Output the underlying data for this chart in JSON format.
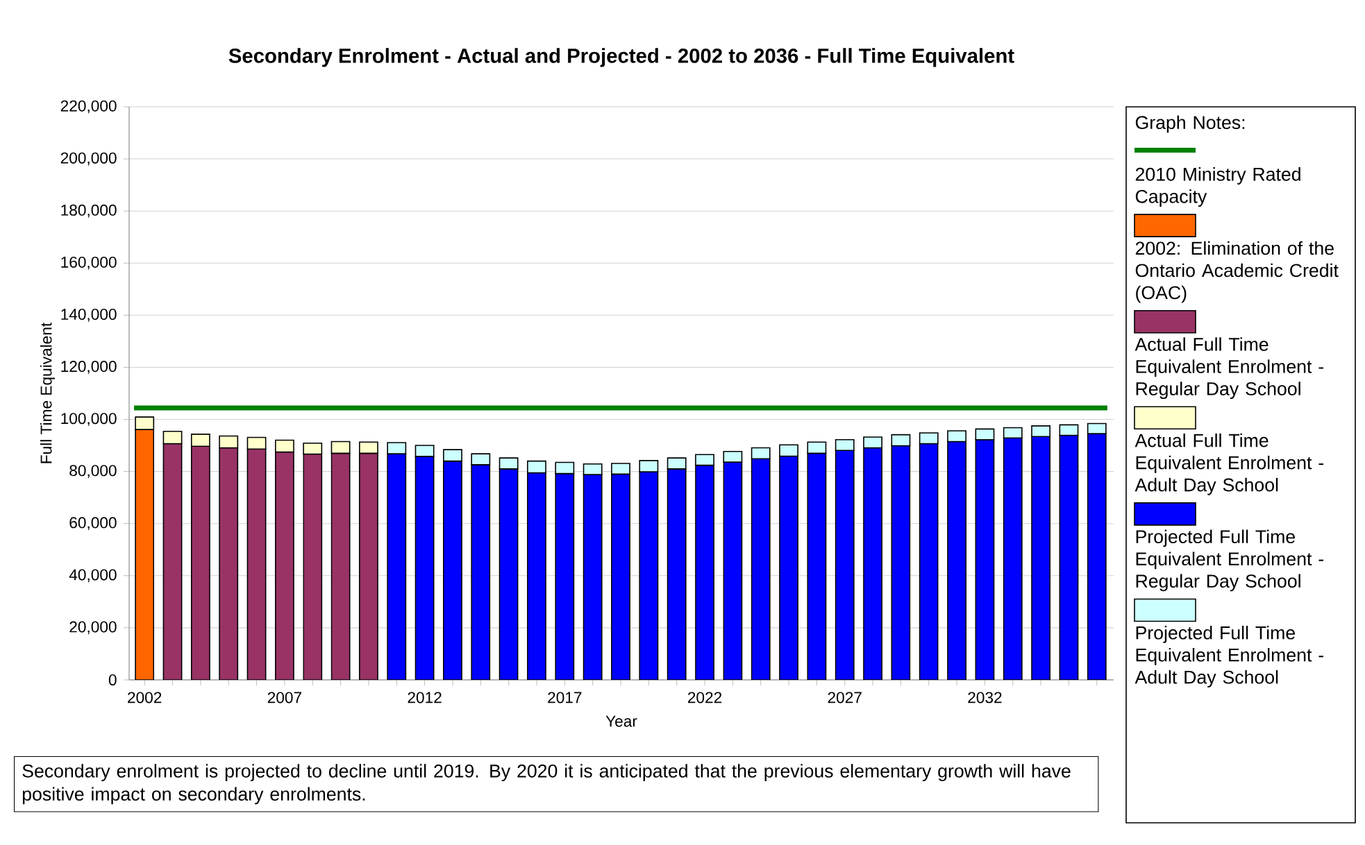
{
  "chart_data": {
    "type": "bar",
    "stacked": true,
    "title": "Secondary Enrolment - Actual and Projected - 2002 to 2036 - Full Time Equivalent",
    "xlabel": "Year",
    "ylabel": "Full Time Equivalent",
    "legend_title": "Graph Notes:",
    "legend": "right",
    "grid": "y",
    "categories": [
      "2002",
      null,
      null,
      null,
      null,
      "2007",
      null,
      null,
      null,
      null,
      "2012",
      null,
      null,
      null,
      null,
      "2017",
      null,
      null,
      null,
      null,
      "2022",
      null,
      null,
      null,
      null,
      "2027",
      null,
      null,
      null,
      null,
      "2032",
      null,
      null,
      null,
      null
    ],
    "ylim": [
      0,
      220000
    ],
    "yticks": [
      0,
      {
        "value": 20000,
        "label": "20,000"
      },
      {
        "value": 40000,
        "label": "40,000"
      },
      {
        "value": 60000,
        "label": "60,000"
      },
      {
        "value": 80000,
        "label": "80,000"
      },
      {
        "value": 100000,
        "label": "100,000"
      },
      {
        "value": 120000,
        "label": "120,000"
      },
      {
        "value": 140000,
        "label": "140,000"
      },
      {
        "value": 160000,
        "label": "160,000"
      },
      {
        "value": 180000,
        "label": "180,000"
      },
      {
        "value": 200000,
        "label": "200,000"
      },
      {
        "value": 220000,
        "label": "220,000"
      }
    ],
    "series": [
      {
        "name": "2002:  Elimination of the Ontario Academic Credit (OAC)",
        "color": "#ff6600",
        "values": [
          96100,
          null,
          null,
          null,
          null,
          null,
          null,
          null,
          null,
          null,
          null,
          null,
          null,
          null,
          null,
          null,
          null,
          null,
          null,
          null,
          null,
          null,
          null,
          null,
          null,
          null,
          null,
          null,
          null,
          null,
          null,
          null,
          null,
          null,
          null
        ]
      },
      {
        "name": "Actual Full Time Equivalent Enrolment - Regular Day School",
        "color": "#993366",
        "values": [
          null,
          90700,
          89700,
          89100,
          88600,
          87500,
          86700,
          87000,
          87000,
          null,
          null,
          null,
          null,
          null,
          null,
          null,
          null,
          null,
          null,
          null,
          null,
          null,
          null,
          null,
          null,
          null,
          null,
          null,
          null,
          null,
          null,
          null,
          null,
          null,
          null
        ]
      },
      {
        "name": "Actual Full Time Equivalent Enrolment - Adult Day School",
        "color": "#ffffcc",
        "values": [
          4800,
          4700,
          4600,
          4500,
          4500,
          4500,
          4200,
          4500,
          4300,
          null,
          null,
          null,
          null,
          null,
          null,
          null,
          null,
          null,
          null,
          null,
          null,
          null,
          null,
          null,
          null,
          null,
          null,
          null,
          null,
          null,
          null,
          null,
          null,
          null,
          null
        ]
      },
      {
        "name": "Projected Full Time Equivalent Enrolment - Regular Day School",
        "color": "#0000ff",
        "values": [
          null,
          null,
          null,
          null,
          null,
          null,
          null,
          null,
          null,
          86800,
          85800,
          84000,
          82600,
          81000,
          79500,
          79200,
          78800,
          79000,
          79900,
          81000,
          82400,
          83600,
          84900,
          85900,
          87000,
          88100,
          89100,
          89900,
          90700,
          91500,
          92200,
          92900,
          93400,
          93900,
          94500
        ]
      },
      {
        "name": "Projected Full Time Equivalent Enrolment - Adult Day School",
        "color": "#ccffff",
        "values": [
          null,
          null,
          null,
          null,
          null,
          null,
          null,
          null,
          null,
          4300,
          4200,
          4400,
          4200,
          4200,
          4500,
          4300,
          4100,
          4100,
          4300,
          4200,
          4100,
          4100,
          4200,
          4300,
          4300,
          4100,
          4100,
          4200,
          4100,
          4100,
          4100,
          3900,
          4100,
          4000,
          3900
        ]
      }
    ],
    "ref_lines": [
      {
        "axis": "y",
        "value": 104400,
        "label": "2010 Ministry Rated Capacity",
        "color": "#008000"
      }
    ],
    "annotations": [
      "Secondary enrolment is projected to decline until 2019.  By 2020 it is anticipated that the previous elementary growth will have positive impact on secondary enrolments."
    ]
  }
}
